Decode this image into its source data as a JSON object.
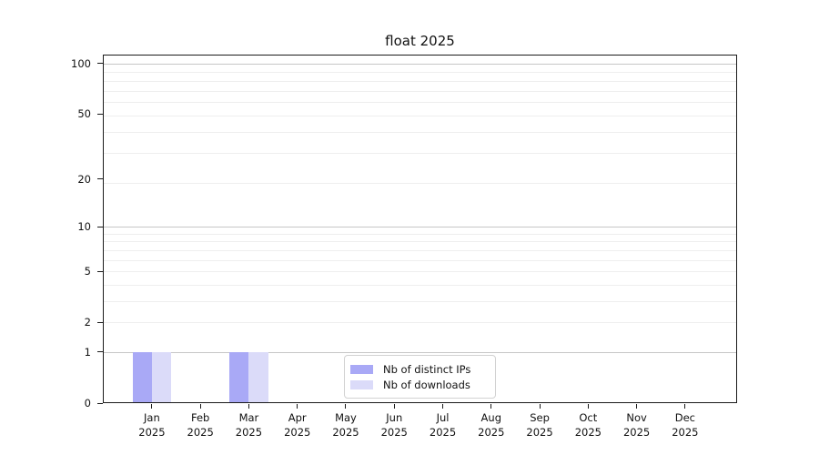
{
  "chart_data": {
    "type": "bar",
    "title": "float 2025",
    "categories": [
      "Jan 2025",
      "Feb 2025",
      "Mar 2025",
      "Apr 2025",
      "May 2025",
      "Jun 2025",
      "Jul 2025",
      "Aug 2025",
      "Sep 2025",
      "Oct 2025",
      "Nov 2025",
      "Dec 2025"
    ],
    "series": [
      {
        "name": "Nb of distinct IPs",
        "color": "#a9a9f6",
        "values": [
          1,
          0,
          1,
          0,
          0,
          0,
          0,
          0,
          0,
          0,
          0,
          0
        ]
      },
      {
        "name": "Nb of downloads",
        "color": "#dbdbf9",
        "values": [
          1,
          0,
          1,
          0,
          0,
          0,
          0,
          0,
          0,
          0,
          0,
          0
        ]
      }
    ],
    "yscale": "log1p",
    "yticks": [
      0,
      1,
      2,
      5,
      10,
      20,
      50,
      100
    ],
    "ylim": [
      0,
      113
    ],
    "xlabel": "",
    "ylabel": "",
    "grid": "horizontal major+minor",
    "legend_position": "lower center inside"
  }
}
